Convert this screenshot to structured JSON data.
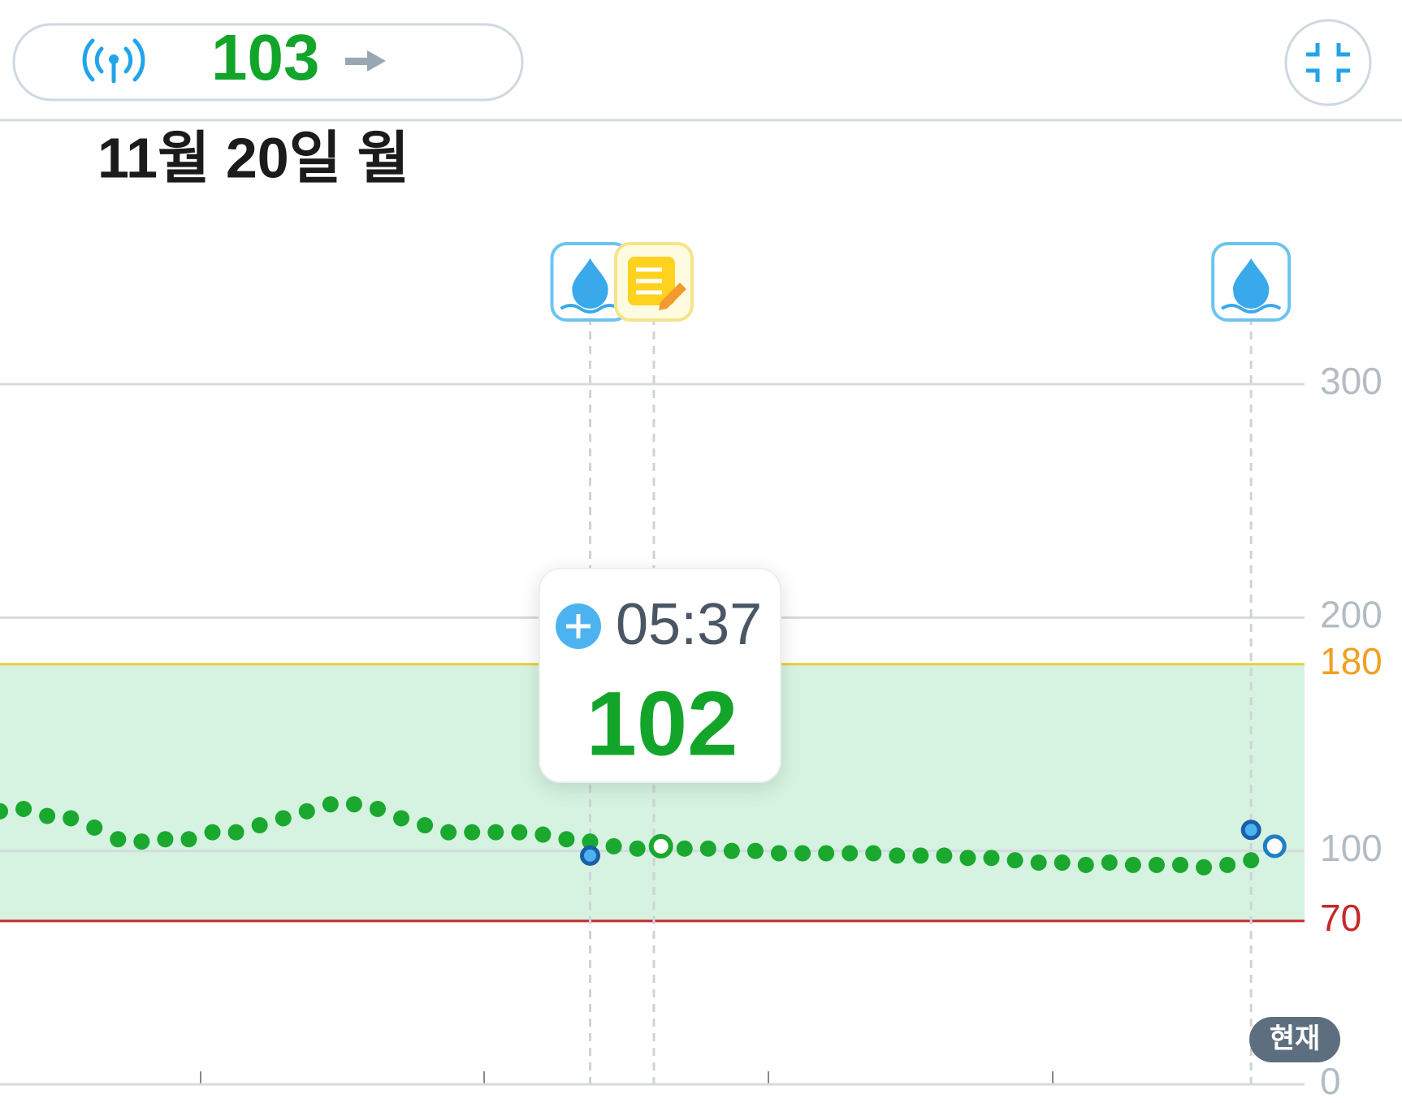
{
  "header": {
    "glucose": 103
  },
  "date": "11월 20일 월",
  "badge": "현재",
  "tooltip": {
    "time": "05:37",
    "value": 102
  },
  "chart_data": {
    "type": "scatter",
    "ylim": [
      0,
      300
    ],
    "yticks": [
      0,
      100,
      200,
      300
    ],
    "grid": true,
    "target_range": {
      "low": 70,
      "high": 180
    },
    "series": [
      {
        "color": "#1aa82f",
        "values": [
          117,
          118,
          115,
          114,
          110,
          105,
          104,
          105,
          105,
          108,
          108,
          111,
          114,
          117,
          120,
          120,
          118,
          114,
          111,
          108,
          108,
          108,
          108,
          107,
          105,
          104,
          102,
          101,
          102,
          101,
          101,
          100,
          100,
          99,
          99,
          99,
          99,
          99,
          98,
          98,
          98,
          97,
          97,
          96,
          95,
          95,
          94,
          95,
          94,
          94,
          94,
          93,
          94,
          96,
          null
        ]
      },
      {
        "color": "#4db3f0",
        "values": [
          null,
          null,
          null,
          null,
          null,
          null,
          null,
          null,
          null,
          null,
          null,
          null,
          null,
          null,
          null,
          null,
          null,
          null,
          null,
          null,
          null,
          null,
          null,
          null,
          null,
          98,
          null,
          null,
          null,
          null,
          null,
          null,
          null,
          null,
          null,
          null,
          null,
          null,
          null,
          null,
          null,
          null,
          null,
          null,
          null,
          null,
          null,
          null,
          null,
          null,
          null,
          null,
          null,
          109,
          null
        ]
      },
      {
        "color": "#1f7fc4",
        "values": [
          null,
          null,
          null,
          null,
          null,
          null,
          null,
          null,
          null,
          null,
          null,
          null,
          null,
          null,
          null,
          null,
          null,
          null,
          null,
          null,
          null,
          null,
          null,
          null,
          null,
          null,
          null,
          null,
          null,
          null,
          null,
          null,
          null,
          null,
          null,
          null,
          null,
          null,
          null,
          null,
          null,
          null,
          null,
          null,
          null,
          null,
          null,
          null,
          null,
          null,
          null,
          null,
          null,
          null,
          102
        ]
      }
    ]
  }
}
